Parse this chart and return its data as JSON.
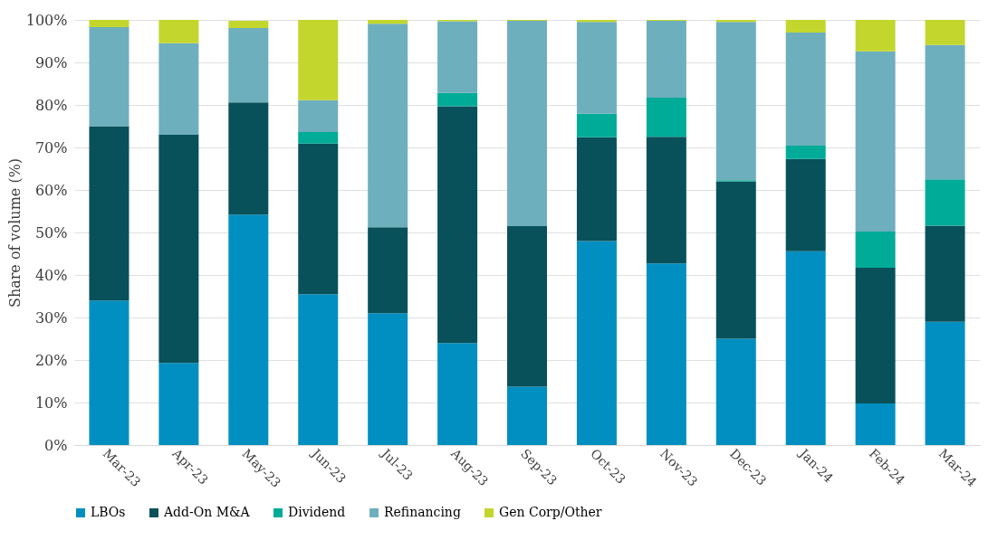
{
  "chart_data": {
    "type": "bar",
    "stacked": true,
    "ylabel": "Share of volume (%)",
    "categories": [
      "Mar-23",
      "Apr-23",
      "May-23",
      "Jun-23",
      "Jul-23",
      "Aug-23",
      "Sep-23",
      "Oct-23",
      "Nov-23",
      "Dec-23",
      "Jan-24",
      "Feb-24",
      "Mar-24"
    ],
    "series": [
      {
        "name": "LBOs",
        "color": "#008fc0",
        "values": [
          34,
          19.3,
          54.2,
          35.5,
          31,
          24,
          13.7,
          48,
          42.7,
          25,
          45.6,
          9.8,
          29
        ]
      },
      {
        "name": "Add-On M&A",
        "color": "#08515a",
        "values": [
          41,
          53.7,
          26.4,
          35.4,
          20.2,
          55.7,
          37.8,
          24.4,
          29.8,
          37,
          21.7,
          31.9,
          22.6
        ]
      },
      {
        "name": "Dividend",
        "color": "#00ab97",
        "values": [
          0,
          0,
          null,
          2.7,
          0,
          3.1,
          0,
          5.5,
          9.2,
          0.3,
          3.1,
          8.5,
          10.9
        ]
      },
      {
        "name": "Refinancing",
        "color": "#6eafbd",
        "values": [
          23.3,
          21.5,
          17.5,
          7.5,
          47.9,
          16.9,
          48.3,
          21.6,
          18.1,
          37.2,
          26.6,
          42.4,
          31.6
        ]
      },
      {
        "name": "Gen Corp/Other",
        "color": "#c2d62e",
        "values": [
          1.7,
          5.5,
          1.7,
          18.9,
          0.9,
          0.3,
          0.2,
          0.5,
          0.2,
          0.5,
          3,
          7.4,
          5.9
        ]
      }
    ],
    "ylim": [
      0,
      100
    ],
    "yticks": [
      {
        "value": 0,
        "label": "0%"
      },
      {
        "value": 10,
        "label": "10%"
      },
      {
        "value": 20,
        "label": "20%"
      },
      {
        "value": 30,
        "label": "30%"
      },
      {
        "value": 40,
        "label": "40%"
      },
      {
        "value": 50,
        "label": "50%"
      },
      {
        "value": 60,
        "label": "60%"
      },
      {
        "value": 70,
        "label": "70%"
      },
      {
        "value": 80,
        "label": "80%"
      },
      {
        "value": 90,
        "label": "90%"
      },
      {
        "value": 100,
        "label": "100%"
      }
    ],
    "grid": "y",
    "legend": "bottom"
  }
}
